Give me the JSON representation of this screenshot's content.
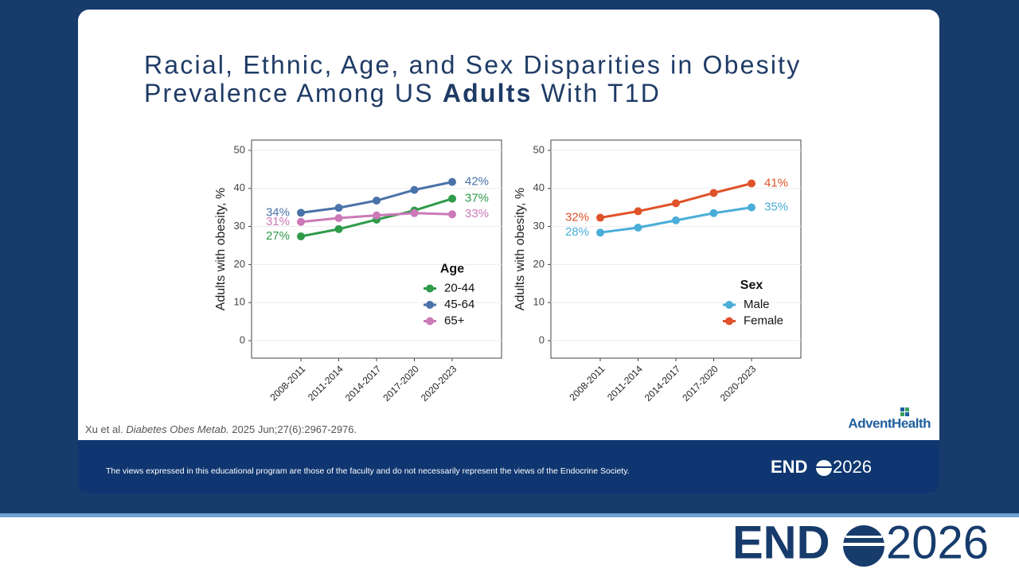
{
  "slide": {
    "title_line1": "Racial, Ethnic, Age, and Sex Disparities in Obesity",
    "title_line2": [
      "Prevalence Among US ",
      "Adults",
      " With T1D"
    ],
    "citation": [
      "Xu et al. ",
      "Diabetes Obes Metab.",
      " 2025 Jun;27(6):2967-2976."
    ],
    "sponsor_logo": "AdventHealth",
    "disclaimer": "The views expressed in this educational program are those of the faculty and do not necessarily represent the views of the Endocrine Society.",
    "event_logo": [
      "END",
      "2026"
    ]
  },
  "chart_data": [
    {
      "type": "line",
      "y_label": "Adults with obesity, %",
      "legend_title": "Age",
      "legend": "bottom-right",
      "grid": true,
      "categories": [
        "2008-2011",
        "2011-2014",
        "2014-2017",
        "2017-2020",
        "2020-2023"
      ],
      "ylim": [
        -4.6,
        52.7
      ],
      "yticks": [
        0,
        10,
        20,
        30,
        40,
        50
      ],
      "series": [
        {
          "name": "20-44",
          "color": "#2e9a4a",
          "values": [
            27.4,
            29.3,
            31.8,
            34.2,
            37.3
          ],
          "value_labels": [
            "27%",
            null,
            null,
            null,
            "37%"
          ]
        },
        {
          "name": "45-64",
          "color": "#4a72a8",
          "values": [
            33.6,
            34.9,
            36.8,
            39.6,
            41.7
          ],
          "value_labels": [
            "34%",
            null,
            null,
            null,
            "42%"
          ]
        },
        {
          "name": "65+",
          "color": "#cc79b8",
          "values": [
            31.2,
            32.2,
            32.9,
            33.5,
            33.2
          ],
          "value_labels": [
            "31%",
            null,
            null,
            null,
            "33%"
          ]
        }
      ]
    },
    {
      "type": "line",
      "y_label": "Adults with obesity, %",
      "legend_title": "Sex",
      "legend": "bottom-right",
      "grid": true,
      "categories": [
        "2008-2011",
        "2011-2014",
        "2014-2017",
        "2017-2020",
        "2020-2023"
      ],
      "ylim": [
        -4.6,
        52.7
      ],
      "yticks": [
        0,
        10,
        20,
        30,
        40,
        50
      ],
      "series": [
        {
          "name": "Male",
          "color": "#4aaed8",
          "values": [
            28.4,
            29.7,
            31.6,
            33.5,
            35.0
          ],
          "value_labels": [
            "28%",
            null,
            null,
            null,
            "35%"
          ]
        },
        {
          "name": "Female",
          "color": "#e0522a",
          "values": [
            32.3,
            34.0,
            36.1,
            38.8,
            41.3
          ],
          "value_labels": [
            "32%",
            null,
            null,
            null,
            "41%"
          ]
        }
      ]
    }
  ]
}
